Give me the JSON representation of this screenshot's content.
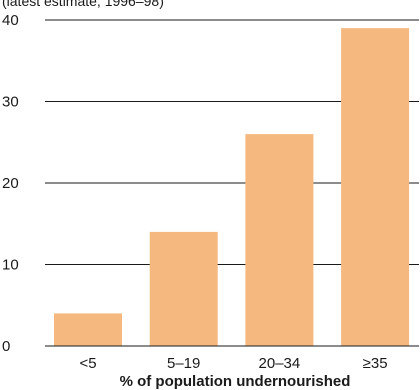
{
  "chart_data": {
    "type": "bar",
    "subtitle": "(latest estimate, 1996–98)",
    "xlabel": "% of population undernourished",
    "ylabel": "",
    "categories": [
      "<5",
      "5–19",
      "20–34",
      "≥35"
    ],
    "values": [
      4,
      14,
      26,
      39
    ],
    "ylim": [
      0,
      40
    ],
    "yticks": [
      0,
      10,
      20,
      30,
      40
    ],
    "grid": true,
    "colors": {
      "bar": "#f5b97f",
      "grid": "#1a1a1a"
    }
  }
}
